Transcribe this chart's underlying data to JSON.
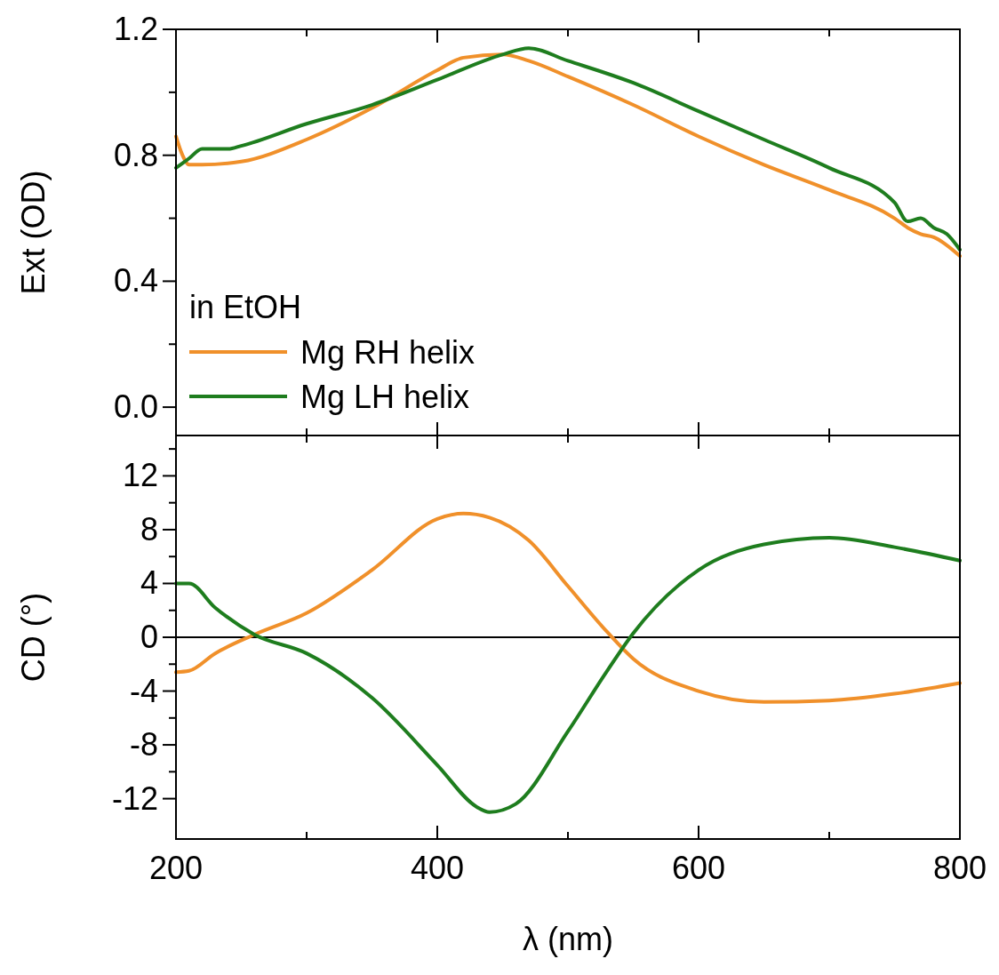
{
  "chart_data": [
    {
      "type": "line",
      "ylabel": "Ext (OD)",
      "legend_title": "in EtOH",
      "legend": "bottom left",
      "tick_labels": "y",
      "xlim": [
        200,
        800
      ],
      "xticks": [
        200,
        {
          "value": 300,
          "label": null
        },
        400,
        {
          "value": 500,
          "label": null
        },
        600,
        {
          "value": 700,
          "label": null
        },
        800
      ],
      "ylim": [
        -0.09,
        1.2
      ],
      "yticks": [
        {
          "value": 0,
          "label": "0.0"
        },
        {
          "value": 0.2,
          "label": null
        },
        0.4,
        {
          "value": 0.6,
          "label": null
        },
        0.8,
        {
          "value": 1.0,
          "label": null
        },
        1.2
      ],
      "series": [
        {
          "name": "Mg RH helix",
          "color": "#f0902a",
          "x": [
            200,
            205,
            210,
            220,
            250,
            300,
            350,
            400,
            420,
            450,
            470,
            500,
            550,
            600,
            650,
            700,
            750,
            760,
            770,
            780,
            800
          ],
          "values": [
            0.86,
            0.8,
            0.77,
            0.77,
            0.78,
            0.85,
            0.95,
            1.07,
            1.11,
            1.12,
            1.1,
            1.05,
            0.96,
            0.86,
            0.77,
            0.69,
            0.6,
            0.57,
            0.55,
            0.54,
            0.48
          ]
        },
        {
          "name": "Mg LH helix",
          "color": "#1e7d1e",
          "x": [
            200,
            210,
            220,
            240,
            250,
            300,
            350,
            400,
            450,
            470,
            500,
            550,
            600,
            650,
            700,
            750,
            760,
            770,
            780,
            790,
            800
          ],
          "values": [
            0.76,
            0.79,
            0.82,
            0.82,
            0.83,
            0.9,
            0.96,
            1.04,
            1.12,
            1.14,
            1.1,
            1.03,
            0.94,
            0.85,
            0.76,
            0.65,
            0.59,
            0.6,
            0.57,
            0.55,
            0.5
          ]
        }
      ]
    },
    {
      "type": "line",
      "xlabel": "λ (nm)",
      "ylabel": "CD (°)",
      "xlim": [
        200,
        800
      ],
      "xticks": [
        200,
        {
          "value": 300,
          "label": null
        },
        400,
        {
          "value": 500,
          "label": null
        },
        600,
        {
          "value": 700,
          "label": null
        },
        800
      ],
      "ylim": [
        -15,
        15
      ],
      "yticks": [
        -12,
        {
          "value": -10,
          "label": null
        },
        -8,
        {
          "value": -6,
          "label": null
        },
        -4,
        {
          "value": -2,
          "label": null
        },
        0,
        {
          "value": 2,
          "label": null
        },
        4,
        {
          "value": 6,
          "label": null
        },
        8,
        {
          "value": 10,
          "label": null
        },
        12,
        {
          "value": 14,
          "label": null
        }
      ],
      "ref_lines": [
        {
          "axis": "y",
          "value": 0,
          "color": "#000000"
        }
      ],
      "series": [
        {
          "color": "#f0902a",
          "x": [
            200,
            210,
            230,
            260,
            300,
            350,
            400,
            420,
            440,
            470,
            500,
            530,
            550,
            600,
            650,
            700,
            750,
            800
          ],
          "values": [
            -2.6,
            -2.5,
            -1.2,
            0.2,
            1.8,
            5.0,
            8.8,
            9.2,
            8.9,
            7.2,
            3.8,
            0.4,
            -1.6,
            -4.0,
            -4.8,
            -4.7,
            -4.2,
            -3.4
          ]
        },
        {
          "color": "#1e7d1e",
          "x": [
            200,
            210,
            230,
            260,
            300,
            350,
            400,
            430,
            440,
            460,
            500,
            530,
            550,
            600,
            650,
            700,
            750,
            800
          ],
          "values": [
            4.0,
            4.0,
            2.2,
            0.2,
            -1.2,
            -4.5,
            -9.5,
            -12.6,
            -13.0,
            -12.4,
            -7.0,
            -2.5,
            0.3,
            5.0,
            6.9,
            7.4,
            6.7,
            5.7
          ]
        }
      ]
    }
  ]
}
